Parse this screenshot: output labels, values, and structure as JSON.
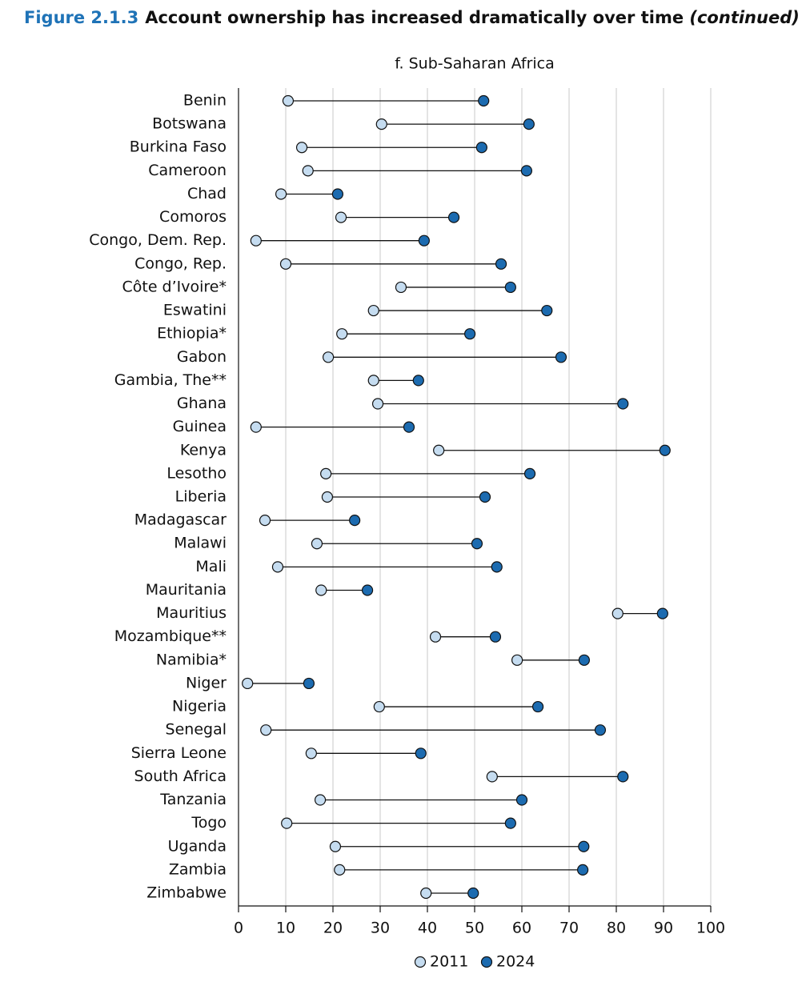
{
  "chart_data": {
    "type": "dumbbell",
    "figure_label": "Figure 2.1.3",
    "title": "Account ownership has increased dramatically over time",
    "title_note": "(continued)",
    "subtitle": "f. Sub-Saharan Africa",
    "categories": [
      "Benin",
      "Botswana",
      "Burkina Faso",
      "Cameroon",
      "Chad",
      "Comoros",
      "Congo, Dem. Rep.",
      "Congo, Rep.",
      "Côte d’Ivoire*",
      "Eswatini",
      "Ethiopia*",
      "Gabon",
      "Gambia, The**",
      "Ghana",
      "Guinea",
      "Kenya",
      "Lesotho",
      "Liberia",
      "Madagascar",
      "Malawi",
      "Mali",
      "Mauritania",
      "Mauritius",
      "Mozambique**",
      "Namibia*",
      "Niger",
      "Nigeria",
      "Senegal",
      "Sierra Leone",
      "South Africa",
      "Tanzania",
      "Togo",
      "Uganda",
      "Zambia",
      "Zimbabwe"
    ],
    "series": [
      {
        "name": "2011",
        "color": "#c5dcf0",
        "values": [
          10.5,
          30.3,
          13.4,
          14.7,
          9.0,
          21.7,
          3.7,
          10.0,
          34.4,
          28.6,
          21.9,
          19.0,
          28.6,
          29.5,
          3.7,
          42.4,
          18.5,
          18.8,
          5.6,
          16.6,
          8.3,
          17.5,
          80.3,
          41.7,
          59.0,
          1.9,
          29.8,
          5.8,
          15.4,
          53.7,
          17.3,
          10.2,
          20.5,
          21.4,
          39.7
        ]
      },
      {
        "name": "2024",
        "color": "#1c6bb0",
        "values": [
          51.9,
          61.5,
          51.5,
          61.0,
          21.0,
          45.6,
          39.3,
          55.6,
          57.6,
          65.3,
          49.0,
          68.3,
          38.1,
          81.4,
          36.1,
          90.3,
          61.7,
          52.2,
          24.6,
          50.5,
          54.7,
          27.3,
          89.8,
          54.4,
          73.2,
          14.9,
          63.4,
          76.6,
          38.6,
          81.4,
          60.0,
          57.6,
          73.1,
          72.9,
          49.7
        ]
      }
    ],
    "xlim": [
      0,
      100
    ],
    "xticks": [
      0,
      10,
      20,
      30,
      40,
      50,
      60,
      70,
      80,
      90,
      100
    ],
    "grid": true
  }
}
